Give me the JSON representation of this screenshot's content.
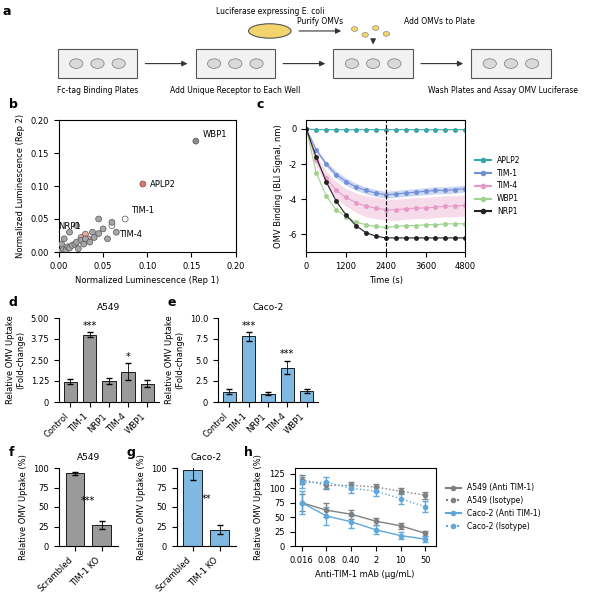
{
  "diagram": {
    "panel_label": "a",
    "texts": {
      "bacteria": "Luciferase expressing E. coli",
      "purify": "Purify OMVs",
      "add_omvs": "Add OMVs to Plate",
      "plate": "Fc-tag Binding Plates",
      "receptor": "Add Unique Receptor to Each Well",
      "assay": "Wash Plates and Assay OMV Luciferase"
    }
  },
  "chart_data": [
    {
      "panel_label": "b",
      "type": "scatter",
      "x_label": "Normalized Luminescence (Rep 1)",
      "y_label": "Normalized Luminescence (Rep 2)",
      "x": [
        0.155,
        0.095,
        0.075,
        0.06,
        0.03,
        0.025,
        0.033,
        0.002,
        0.005,
        0.008,
        0.01,
        0.012,
        0.015,
        0.018,
        0.02,
        0.022,
        0.025,
        0.028,
        0.03,
        0.035,
        0.038,
        0.04,
        0.045,
        0.05,
        0.055,
        0.06,
        0.065,
        0.003,
        0.006,
        0.012,
        0.02,
        0.045
      ],
      "y": [
        0.168,
        0.103,
        0.05,
        0.04,
        0.027,
        0.022,
        0.02,
        0.001,
        0.004,
        0.003,
        0.008,
        0.006,
        0.01,
        0.012,
        0.015,
        0.005,
        0.018,
        0.012,
        0.02,
        0.015,
        0.03,
        0.022,
        0.028,
        0.035,
        0.02,
        0.045,
        0.03,
        0.012,
        0.02,
        0.03,
        0.04,
        0.05
      ],
      "colors": [
        "#8c8c8c",
        "#e8756a",
        "#ffffff",
        "#ffffff",
        "#f4a6a0",
        "#f4a6a0",
        "#f4a6a0",
        "#a6a6a6",
        "#a6a6a6",
        "#a6a6a6",
        "#a6a6a6",
        "#a6a6a6",
        "#a6a6a6",
        "#a6a6a6",
        "#a6a6a6",
        "#a6a6a6",
        "#a6a6a6",
        "#a6a6a6",
        "#a6a6a6",
        "#a6a6a6",
        "#a6a6a6",
        "#a6a6a6",
        "#a6a6a6",
        "#a6a6a6",
        "#a6a6a6",
        "#a6a6a6",
        "#a6a6a6",
        "#a6a6a6",
        "#a6a6a6",
        "#a6a6a6",
        "#a6a6a6",
        "#a6a6a6"
      ],
      "point_labels": [
        "WBP1",
        "APLP2",
        "TIM-1",
        "TIM-4",
        "NRP1",
        null,
        null,
        null,
        null,
        null,
        null,
        null,
        null,
        null,
        null,
        null,
        null,
        null,
        null,
        null,
        null,
        null,
        null,
        null,
        null,
        null,
        null,
        null,
        null,
        null,
        null,
        null
      ],
      "xlim": [
        0,
        0.2
      ],
      "ylim": [
        0,
        0.2
      ],
      "xticks": [
        {
          "value": 0,
          "label": "0.00"
        },
        {
          "value": 0.05,
          "label": "0.05"
        },
        {
          "value": 0.1,
          "label": "0.10"
        },
        {
          "value": 0.15,
          "label": "0.15"
        },
        {
          "value": 0.2,
          "label": "0.20"
        }
      ],
      "yticks": [
        {
          "value": 0,
          "label": "0.00"
        },
        {
          "value": 0.05,
          "label": "0.05"
        },
        {
          "value": 0.1,
          "label": "0.10"
        },
        {
          "value": 0.15,
          "label": "0.15"
        },
        {
          "value": 0.2,
          "label": "0.20"
        }
      ]
    },
    {
      "panel_label": "c",
      "type": "line",
      "x_label": "Time (s)",
      "y_label": "OMV Binding (BLI Signal, nm)",
      "x": [
        0,
        300,
        600,
        900,
        1200,
        1500,
        1800,
        2100,
        2400,
        2700,
        3000,
        3300,
        3600,
        3900,
        4200,
        4500,
        4800
      ],
      "vline_x": 2400,
      "legend": "right",
      "marker": "o",
      "series": [
        {
          "name": "APLP2",
          "color": "#3aa6a6",
          "values": [
            0,
            -0.05,
            -0.05,
            -0.05,
            -0.05,
            -0.05,
            -0.05,
            -0.05,
            -0.05,
            -0.05,
            -0.05,
            -0.05,
            -0.05,
            -0.05,
            -0.05,
            -0.05,
            -0.05
          ]
        },
        {
          "name": "TIM-1",
          "color": "#6f8fd6",
          "values": [
            0,
            -1.2,
            -2.0,
            -2.6,
            -3.0,
            -3.3,
            -3.5,
            -3.65,
            -3.75,
            -3.7,
            -3.65,
            -3.6,
            -3.55,
            -3.5,
            -3.5,
            -3.45,
            -3.4
          ],
          "error": [
            0,
            0.1,
            0.15,
            0.2,
            0.2,
            0.2,
            0.2,
            0.2,
            0.2,
            0.2,
            0.2,
            0.2,
            0.2,
            0.2,
            0.2,
            0.2,
            0.2
          ]
        },
        {
          "name": "TIM-4",
          "color": "#e79ac8",
          "values": [
            0,
            -1.8,
            -2.8,
            -3.5,
            -3.9,
            -4.2,
            -4.4,
            -4.5,
            -4.6,
            -4.6,
            -4.55,
            -4.5,
            -4.5,
            -4.45,
            -4.4,
            -4.4,
            -4.35
          ],
          "error": [
            0,
            0.3,
            0.4,
            0.5,
            0.5,
            0.55,
            0.6,
            0.6,
            0.6,
            0.6,
            0.6,
            0.6,
            0.6,
            0.6,
            0.6,
            0.6,
            0.6
          ]
        },
        {
          "name": "WBP1",
          "color": "#9fd28f",
          "values": [
            0,
            -2.5,
            -3.8,
            -4.6,
            -5.0,
            -5.3,
            -5.45,
            -5.55,
            -5.6,
            -5.55,
            -5.5,
            -5.5,
            -5.45,
            -5.45,
            -5.4,
            -5.4,
            -5.4
          ]
        },
        {
          "name": "NRP1",
          "color": "#222222",
          "values": [
            0,
            -1.6,
            -3.0,
            -4.1,
            -4.9,
            -5.5,
            -5.9,
            -6.1,
            -6.2,
            -6.2,
            -6.2,
            -6.2,
            -6.2,
            -6.2,
            -6.2,
            -6.2,
            -6.2
          ]
        }
      ],
      "xlim": [
        0,
        4800
      ],
      "ylim": [
        -7,
        0.5
      ],
      "xticks": [
        0,
        1200,
        2400,
        3600,
        4800
      ],
      "yticks": [
        -6,
        -4,
        -2,
        0
      ]
    },
    {
      "panel_label": "d",
      "type": "bar",
      "title": "A549",
      "y_label": "Relative OMV Uptake\n(Fold-change)",
      "categories": [
        "Control",
        "TIM-1",
        "NRP1",
        "TIM-4",
        "WBP1"
      ],
      "values": [
        1.2,
        4.0,
        1.25,
        1.8,
        1.1
      ],
      "errors": [
        0.15,
        0.15,
        0.15,
        0.5,
        0.2
      ],
      "significance": [
        null,
        "***",
        null,
        "*",
        null
      ],
      "color": "#9a9a9a",
      "ylim": [
        0,
        5
      ],
      "yticks": [
        0,
        1.25,
        {
          "value": 2.5,
          "label": "2.50"
        },
        3.75,
        {
          "value": 5,
          "label": "5.00"
        }
      ]
    },
    {
      "panel_label": "e",
      "type": "bar",
      "title": "Caco-2",
      "y_label": "Relative OMV Uptake\n(Fold-change)",
      "categories": [
        "Control",
        "TIM-1",
        "NRP1",
        "TIM-4",
        "WBP1"
      ],
      "values": [
        1.2,
        7.8,
        1.0,
        4.1,
        1.3
      ],
      "errors": [
        0.3,
        0.5,
        0.2,
        0.8,
        0.2
      ],
      "significance": [
        null,
        "***",
        null,
        "***",
        null
      ],
      "color": "#7fb8e0",
      "ylim": [
        0,
        10
      ],
      "yticks": [
        0,
        2.5,
        {
          "value": 5,
          "label": "5.0"
        },
        7.5,
        {
          "value": 10,
          "label": "10.0"
        }
      ]
    },
    {
      "panel_label": "f",
      "type": "bar",
      "title": "A549",
      "y_label": "Relative OMV Uptake (%)",
      "categories": [
        "Scrambled",
        "TIM-1 KO"
      ],
      "values": [
        93,
        27
      ],
      "errors": [
        2,
        5
      ],
      "significance_pair": "***",
      "color": "#9a9a9a",
      "ylim": [
        0,
        100
      ],
      "yticks": [
        0,
        25,
        50,
        75,
        100
      ]
    },
    {
      "panel_label": "g",
      "type": "bar",
      "title": "Caco-2",
      "y_label": "Relative OMV Uptake (%)",
      "categories": [
        "Scrambled",
        "TIM-1 KO"
      ],
      "values": [
        97,
        21
      ],
      "errors": [
        12,
        6
      ],
      "significance_pair": "**",
      "color": "#7fb8e0",
      "ylim": [
        0,
        100
      ],
      "yticks": [
        0,
        25,
        50,
        75,
        100
      ]
    },
    {
      "panel_label": "h",
      "type": "line",
      "log": "x",
      "x_label": "Anti-TIM-1 mAb (µg/mL)",
      "y_label": "Relative OMV Uptake (%)",
      "x": [
        0.016,
        0.08,
        0.4,
        2,
        10,
        50
      ],
      "legend": "right",
      "marker": "o",
      "series": [
        {
          "name": "A549 (Anti TIM-1)",
          "color": "#808080",
          "line_style": "solid",
          "values": [
            75,
            62,
            55,
            43,
            35,
            22
          ],
          "error": [
            15,
            12,
            8,
            6,
            5,
            4
          ]
        },
        {
          "name": "A549 (Isotype)",
          "color": "#808080",
          "line_style": "dotted",
          "values": [
            115,
            105,
            105,
            102,
            95,
            88
          ],
          "error": [
            8,
            6,
            6,
            6,
            5,
            6
          ]
        },
        {
          "name": "Caco-2 (Anti TIM-1)",
          "color": "#5fa8dc",
          "line_style": "solid",
          "values": [
            75,
            52,
            42,
            28,
            18,
            12
          ],
          "error": [
            20,
            15,
            10,
            8,
            6,
            5
          ]
        },
        {
          "name": "Caco-2 (Isotype)",
          "color": "#5fa8dc",
          "line_style": "dotted",
          "values": [
            110,
            110,
            100,
            95,
            82,
            68
          ],
          "error": [
            10,
            10,
            8,
            8,
            10,
            10
          ]
        }
      ],
      "xlim": [
        0.01,
        100
      ],
      "ylim": [
        0,
        135
      ],
      "xticks": [
        0.016,
        0.08,
        {
          "value": 0.4,
          "label": "0.40"
        },
        2,
        10,
        50
      ],
      "yticks": [
        0,
        25,
        50,
        75,
        100,
        125
      ]
    }
  ]
}
